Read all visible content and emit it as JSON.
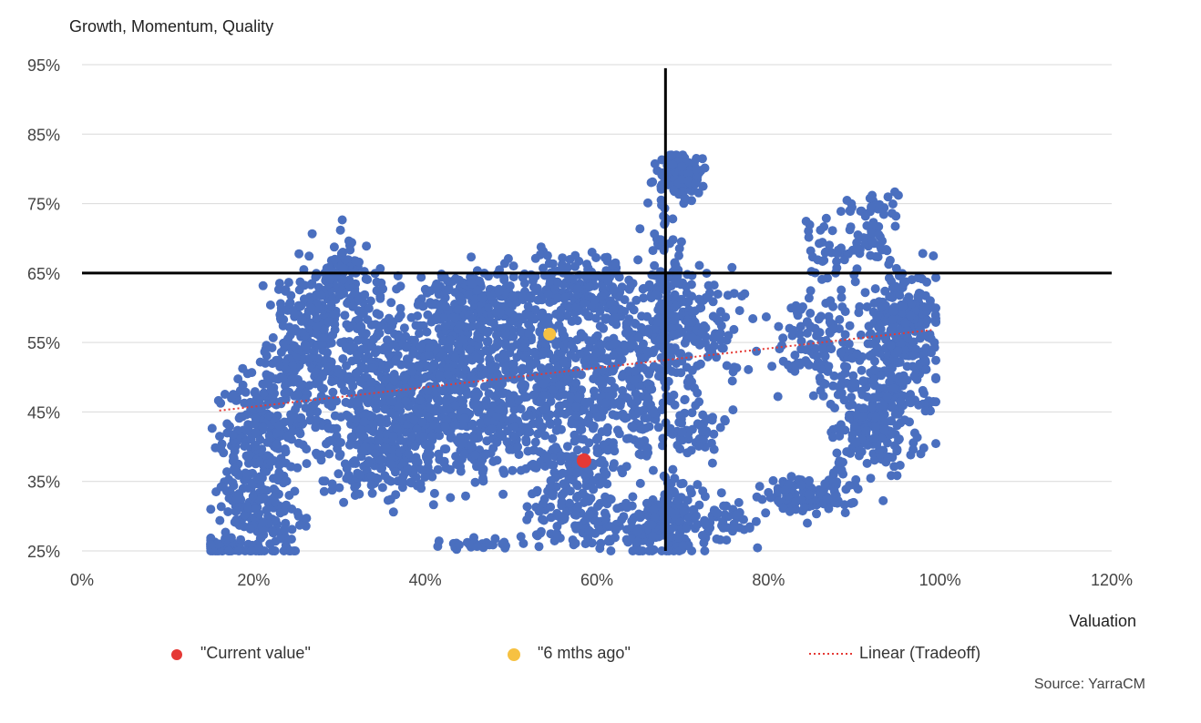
{
  "chart_data": {
    "type": "scatter",
    "title": "Growth, Momentum, Quality",
    "xlabel": "Valuation",
    "ylabel": "",
    "xlim": [
      0,
      120
    ],
    "ylim": [
      25,
      95
    ],
    "x_ticks": [
      "0%",
      "20%",
      "40%",
      "60%",
      "80%",
      "100%",
      "120%"
    ],
    "y_ticks": [
      "25%",
      "35%",
      "45%",
      "55%",
      "65%",
      "75%",
      "85%",
      "95%"
    ],
    "grid": "horizontal",
    "legend_position": "bottom",
    "quadrant_lines": {
      "x": 68,
      "y": 65
    },
    "trendline": {
      "name": "Linear (Tradeoff)",
      "x": [
        16,
        99
      ],
      "y": [
        45.2,
        56.8
      ],
      "color": "#e53935"
    },
    "series": [
      {
        "name": "",
        "color": "#4a6fbf",
        "clusters": [
          {
            "x": 16,
            "y": 25.5,
            "sx": 1.5,
            "sy": 0.6,
            "n": 60
          },
          {
            "x": 21,
            "y": 30,
            "sx": 2.5,
            "sy": 4,
            "n": 160
          },
          {
            "x": 20,
            "y": 40,
            "sx": 2.5,
            "sy": 5,
            "n": 160
          },
          {
            "x": 25,
            "y": 47,
            "sx": 3,
            "sy": 4,
            "n": 160
          },
          {
            "x": 27,
            "y": 57,
            "sx": 3,
            "sy": 4,
            "n": 160
          },
          {
            "x": 30,
            "y": 64,
            "sx": 2.5,
            "sy": 3,
            "n": 110
          },
          {
            "x": 34,
            "y": 50,
            "sx": 3,
            "sy": 6,
            "n": 220
          },
          {
            "x": 35,
            "y": 38,
            "sx": 4,
            "sy": 3,
            "n": 160
          },
          {
            "x": 40,
            "y": 45,
            "sx": 4,
            "sy": 4,
            "n": 260
          },
          {
            "x": 43,
            "y": 54,
            "sx": 4,
            "sy": 4,
            "n": 280
          },
          {
            "x": 45,
            "y": 62,
            "sx": 3,
            "sy": 2,
            "n": 110
          },
          {
            "x": 48,
            "y": 43,
            "sx": 3,
            "sy": 4,
            "n": 160
          },
          {
            "x": 52,
            "y": 57,
            "sx": 3,
            "sy": 5,
            "n": 160
          },
          {
            "x": 56,
            "y": 48,
            "sx": 3,
            "sy": 5,
            "n": 200
          },
          {
            "x": 58,
            "y": 63,
            "sx": 3,
            "sy": 2.5,
            "n": 160
          },
          {
            "x": 57,
            "y": 36,
            "sx": 3,
            "sy": 3,
            "n": 120
          },
          {
            "x": 58,
            "y": 29,
            "sx": 3,
            "sy": 2,
            "n": 80
          },
          {
            "x": 63,
            "y": 54,
            "sx": 3,
            "sy": 5,
            "n": 160
          },
          {
            "x": 64,
            "y": 44,
            "sx": 2.5,
            "sy": 4,
            "n": 90
          },
          {
            "x": 66,
            "y": 28,
            "sx": 2,
            "sy": 2,
            "n": 80
          },
          {
            "x": 68,
            "y": 62,
            "sx": 1.2,
            "sy": 8,
            "n": 110
          },
          {
            "x": 69,
            "y": 30,
            "sx": 1.5,
            "sy": 3,
            "n": 90
          },
          {
            "x": 70,
            "y": 79,
            "sx": 1.5,
            "sy": 2,
            "n": 110
          },
          {
            "x": 71,
            "y": 58,
            "sx": 3,
            "sy": 4,
            "n": 160
          },
          {
            "x": 71,
            "y": 42,
            "sx": 2,
            "sy": 3,
            "n": 60
          },
          {
            "x": 74,
            "y": 29,
            "sx": 2.5,
            "sy": 2,
            "n": 60
          },
          {
            "x": 85,
            "y": 33,
            "sx": 3,
            "sy": 1.5,
            "n": 110
          },
          {
            "x": 86,
            "y": 55,
            "sx": 3,
            "sy": 4,
            "n": 110
          },
          {
            "x": 89,
            "y": 69,
            "sx": 2.5,
            "sy": 3,
            "n": 60
          },
          {
            "x": 92,
            "y": 43,
            "sx": 2.5,
            "sy": 4,
            "n": 160
          },
          {
            "x": 95,
            "y": 50,
            "sx": 2.5,
            "sy": 5,
            "n": 160
          },
          {
            "x": 96,
            "y": 59,
            "sx": 2,
            "sy": 3,
            "n": 160
          },
          {
            "x": 93,
            "y": 72,
            "sx": 1.5,
            "sy": 3,
            "n": 40
          },
          {
            "x": 46,
            "y": 26,
            "sx": 3,
            "sy": 0.4,
            "n": 25
          }
        ]
      },
      {
        "name": "\"Current value\"",
        "color": "#e53935",
        "points": [
          [
            58.5,
            38
          ]
        ]
      },
      {
        "name": "\"6 mths ago\"",
        "color": "#f6c142",
        "points": [
          [
            54.5,
            56.2
          ]
        ]
      }
    ],
    "source": "Source: YarraCM"
  }
}
